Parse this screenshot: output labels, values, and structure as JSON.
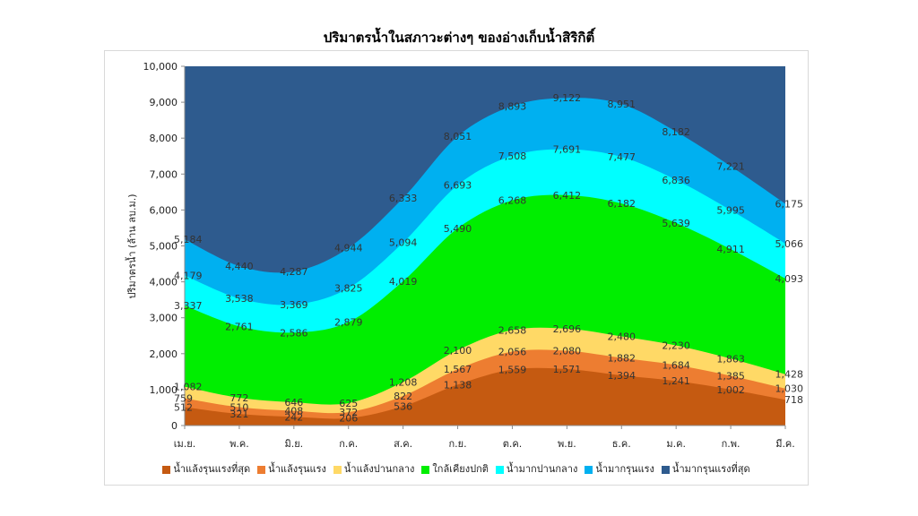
{
  "chart_data": {
    "type": "area",
    "stacked": false,
    "title": "ปริมาตรน้ำในสภาวะต่างๆ ของอ่างเก็บน้ำสิริกิติ์",
    "xlabel": "",
    "ylabel": "ปริมาตรน้ำ (ล้าน ลบ.ม.)",
    "ylim": [
      0,
      10000
    ],
    "yticks": [
      "0",
      "1,000",
      "2,000",
      "3,000",
      "4,000",
      "5,000",
      "6,000",
      "7,000",
      "8,000",
      "9,000",
      "10,000"
    ],
    "categories": [
      "เม.ย.",
      "พ.ค.",
      "มิ.ย.",
      "ก.ค.",
      "ส.ค.",
      "ก.ย.",
      "ต.ค.",
      "พ.ย.",
      "ธ.ค.",
      "ม.ค.",
      "ก.พ.",
      "มี.ค."
    ],
    "legend_position": "bottom",
    "series": [
      {
        "name": "น้ำแล้งรุนแรงที่สุด",
        "color": "#c55a11",
        "values": [
          512,
          321,
          242,
          206,
          536,
          1138,
          1559,
          1571,
          1394,
          1241,
          1002,
          718
        ]
      },
      {
        "name": "น้ำแล้งรุนแรง",
        "color": "#ed7d31",
        "values": [
          759,
          510,
          408,
          372,
          822,
          1567,
          2056,
          2080,
          1882,
          1684,
          1385,
          1030
        ]
      },
      {
        "name": "น้ำแล้งปานกลาง",
        "color": "#ffd966",
        "values": [
          1082,
          772,
          646,
          625,
          1208,
          2100,
          2658,
          2696,
          2480,
          2230,
          1863,
          1428
        ]
      },
      {
        "name": "ใกล้เคียงปกติ",
        "color": "#00ee00",
        "values": [
          3337,
          2761,
          2586,
          2879,
          4019,
          5490,
          6268,
          6412,
          6182,
          5639,
          4911,
          4093
        ]
      },
      {
        "name": "น้ำมากปานกลาง",
        "color": "#00ffff",
        "values": [
          4179,
          3538,
          3369,
          3825,
          5094,
          6693,
          7508,
          7691,
          7477,
          6836,
          5995,
          5066
        ]
      },
      {
        "name": "น้ำมากรุนแรง",
        "color": "#00b0f0",
        "values": [
          5184,
          4440,
          4287,
          4944,
          6333,
          8051,
          8893,
          9122,
          8951,
          8182,
          7221,
          6175
        ]
      },
      {
        "name": "น้ำมากรุนแรงที่สุด",
        "color": "#2e5b8e",
        "values": [
          10000,
          10000,
          10000,
          10000,
          10000,
          10000,
          10000,
          10000,
          10000,
          10000,
          10000,
          10000
        ]
      }
    ],
    "data_labels": [
      [
        "512",
        "321",
        "242",
        "206",
        "536",
        "1,138",
        "1,559",
        "1,571",
        "1,394",
        "1,241",
        "1,002",
        "718"
      ],
      [
        "759",
        "510",
        "408",
        "372",
        "822",
        "1,567",
        "2,056",
        "2,080",
        "1,882",
        "1,684",
        "1,385",
        "1,030"
      ],
      [
        "1,082",
        "772",
        "646",
        "625",
        "1,208",
        "2,100",
        "2,658",
        "2,696",
        "2,480",
        "2,230",
        "1,863",
        "1,428"
      ],
      [
        "3,337",
        "2,761",
        "2,586",
        "2,879",
        "4,019",
        "5,490",
        "6,268",
        "6,412",
        "6,182",
        "5,639",
        "4,911",
        "4,093"
      ],
      [
        "4,179",
        "3,538",
        "3,369",
        "3,825",
        "5,094",
        "6,693",
        "7,508",
        "7,691",
        "7,477",
        "6,836",
        "5,995",
        "5,066"
      ],
      [
        "5,184",
        "4,440",
        "4,287",
        "4,944",
        "6,333",
        "8,051",
        "8,893",
        "9,122",
        "8,951",
        "8,182",
        "7,221",
        "6,175"
      ]
    ]
  }
}
